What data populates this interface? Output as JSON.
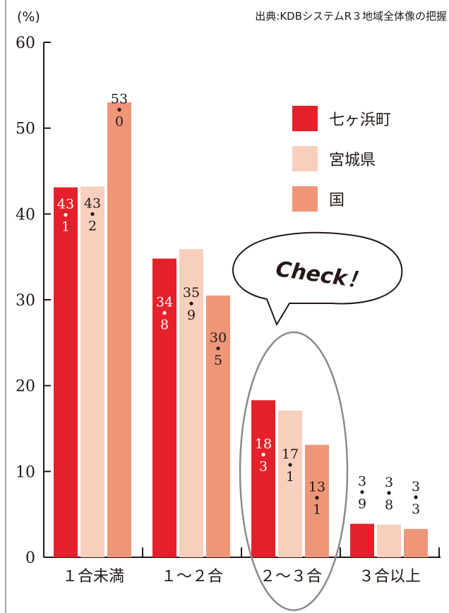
{
  "source_text": "出典:KDBシステムR３地域全体像の把握",
  "y_unit": "(%)",
  "callout_text": "Check！",
  "colors": {
    "local": "#e6202a",
    "prefecture": "#f8cfbd",
    "national": "#ef9678",
    "axis": "#231815"
  },
  "chart_data": {
    "type": "bar",
    "title": "",
    "xlabel": "",
    "ylabel": "(%)",
    "ylim": [
      0,
      60
    ],
    "yticks": [
      0,
      10,
      20,
      30,
      40,
      50,
      60
    ],
    "categories": [
      "１合未満",
      "１～２合",
      "２～３合",
      "３合以上"
    ],
    "series": [
      {
        "name": "七ヶ浜町",
        "values": [
          43.1,
          34.8,
          18.3,
          3.9
        ],
        "labels": [
          [
            "43",
            "1"
          ],
          [
            "34",
            "8"
          ],
          [
            "18",
            "3"
          ],
          [
            "3",
            "9"
          ]
        ]
      },
      {
        "name": "宮城県",
        "values": [
          43.2,
          35.9,
          17.1,
          3.8
        ],
        "labels": [
          [
            "43",
            "2"
          ],
          [
            "35",
            "9"
          ],
          [
            "17",
            "1"
          ],
          [
            "3",
            "8"
          ]
        ]
      },
      {
        "name": "国",
        "values": [
          53.0,
          30.5,
          13.1,
          3.3
        ],
        "labels": [
          [
            "53",
            "0"
          ],
          [
            "30",
            "5"
          ],
          [
            "13",
            "1"
          ],
          [
            "3",
            "3"
          ]
        ]
      }
    ],
    "legend_position": "top-right",
    "grid": false,
    "highlight_category": "２～３合"
  }
}
